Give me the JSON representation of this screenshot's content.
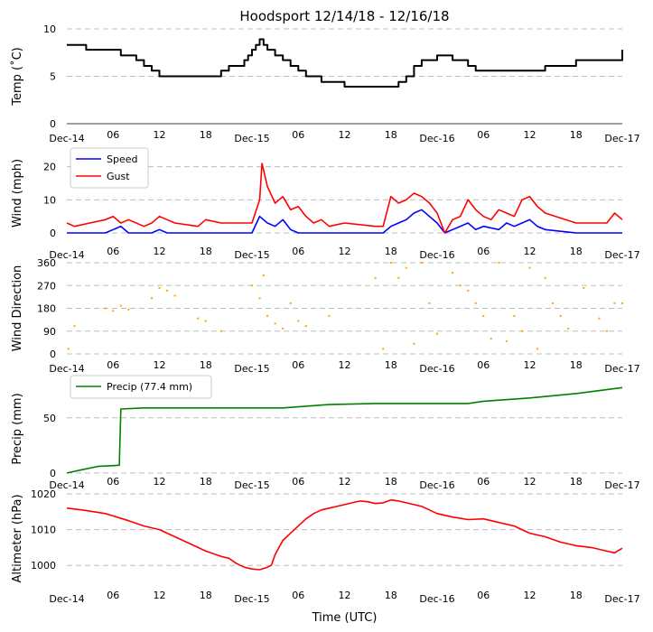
{
  "chart_data": [
    {
      "type": "line",
      "panel": "temperature",
      "title": "Hoodsport 12/14/18 - 12/16/18",
      "ylabel": "Temp ($^\\circ$C)",
      "ylabel_display": "Temp (˚C)",
      "ylim": [
        0,
        10
      ],
      "yticks": [
        0,
        5,
        10
      ],
      "xlim": [
        0,
        72
      ],
      "xticks": [
        "Dec-14",
        "06",
        "12",
        "18",
        "Dec-15",
        "06",
        "12",
        "18",
        "Dec-16",
        "06",
        "12",
        "18",
        "Dec-17"
      ],
      "grid": "dashed-horizontal",
      "series": [
        {
          "name": "Temp",
          "color": "#000000",
          "x": [
            0,
            2,
            2.5,
            6,
            7,
            8,
            9,
            10,
            11,
            12,
            18,
            20,
            21,
            23,
            23.5,
            24,
            24.5,
            25,
            25.5,
            26,
            27,
            28,
            29,
            30,
            31,
            33,
            34,
            36,
            42,
            43,
            44,
            45,
            46,
            48,
            49,
            50,
            52,
            53,
            54,
            60,
            62,
            66,
            72
          ],
          "y": [
            8.3,
            8.3,
            7.8,
            7.8,
            7.2,
            7.2,
            6.7,
            6.1,
            5.6,
            5.0,
            5.0,
            5.6,
            6.1,
            6.7,
            7.2,
            7.8,
            8.3,
            8.9,
            8.3,
            7.8,
            7.2,
            6.7,
            6.1,
            5.6,
            5.0,
            4.4,
            4.4,
            3.9,
            3.9,
            4.4,
            5.0,
            6.1,
            6.7,
            7.2,
            7.2,
            6.7,
            6.1,
            5.6,
            5.6,
            5.6,
            6.1,
            6.7,
            7.8
          ]
        }
      ]
    },
    {
      "type": "line",
      "panel": "wind",
      "ylabel": "Wind (mph)",
      "ylim": [
        0,
        24
      ],
      "yticks": [
        0,
        10,
        20
      ],
      "xticks": [
        "Dec-14",
        "06",
        "12",
        "18",
        "Dec-15",
        "06",
        "12",
        "18",
        "Dec-16",
        "06",
        "12",
        "18",
        "Dec-17"
      ],
      "legend": "upper-left",
      "series": [
        {
          "name": "Speed",
          "color": "#0000ff",
          "x": [
            0,
            5,
            6,
            7,
            8,
            11,
            12,
            13,
            18,
            24,
            25,
            26,
            27,
            28,
            29,
            30,
            34,
            41,
            42,
            43,
            44,
            45,
            46,
            47,
            48,
            49,
            50,
            51,
            52,
            53,
            54,
            56,
            57,
            58,
            59,
            60,
            61,
            62,
            66,
            70,
            72
          ],
          "y": [
            0,
            0,
            1,
            2,
            0,
            0,
            1,
            0,
            0,
            0,
            5,
            3,
            2,
            4,
            1,
            0,
            0,
            0,
            2,
            3,
            4,
            6,
            7,
            5,
            3,
            0,
            1,
            2,
            3,
            1,
            2,
            1,
            3,
            2,
            3,
            4,
            2,
            1,
            0,
            0,
            0
          ]
        },
        {
          "name": "Gust",
          "color": "#ff0000",
          "x": [
            0,
            1,
            3,
            5,
            6,
            7,
            8,
            10,
            11,
            12,
            13,
            14,
            17,
            18,
            20,
            24,
            25,
            25.3,
            26,
            27,
            28,
            29,
            30,
            31,
            32,
            33,
            34,
            36,
            40,
            41,
            42,
            43,
            44,
            45,
            46,
            47,
            48,
            49,
            50,
            51,
            52,
            53,
            54,
            55,
            56,
            57,
            58,
            59,
            60,
            61,
            62,
            66,
            70,
            71,
            72
          ],
          "y": [
            3,
            2,
            3,
            4,
            5,
            3,
            4,
            2,
            3,
            5,
            4,
            3,
            2,
            4,
            3,
            3,
            10,
            21,
            14,
            9,
            11,
            7,
            8,
            5,
            3,
            4,
            2,
            3,
            2,
            2,
            11,
            9,
            10,
            12,
            11,
            9,
            6,
            0,
            4,
            5,
            10,
            7,
            5,
            4,
            7,
            6,
            5,
            10,
            11,
            8,
            6,
            3,
            3,
            6,
            4
          ]
        }
      ]
    },
    {
      "type": "scatter",
      "panel": "wind direction",
      "ylabel": "Wind Direction",
      "ylim": [
        0,
        360
      ],
      "yticks": [
        0,
        90,
        180,
        270,
        360
      ],
      "xticks": [
        "Dec-14",
        "06",
        "12",
        "18",
        "Dec-15",
        "06",
        "12",
        "18",
        "Dec-16",
        "06",
        "12",
        "18",
        "Dec-17"
      ],
      "series": [
        {
          "name": "Direction",
          "color": "#ffa500",
          "x": [
            0.2,
            1,
            5,
            6,
            7,
            8,
            11,
            12,
            13,
            14,
            17,
            18,
            20,
            24,
            25,
            25.5,
            26,
            27,
            28,
            29,
            30,
            31,
            34,
            40,
            41,
            42,
            43,
            44,
            45,
            46,
            47,
            48,
            50,
            51,
            52,
            53,
            54,
            55,
            56,
            57,
            58,
            59,
            60,
            61,
            62,
            63,
            64,
            65,
            67,
            69,
            70,
            71,
            72
          ],
          "y": [
            20,
            110,
            180,
            170,
            190,
            175,
            220,
            260,
            250,
            230,
            140,
            130,
            90,
            270,
            220,
            310,
            150,
            120,
            100,
            200,
            130,
            110,
            150,
            300,
            20,
            360,
            300,
            340,
            40,
            360,
            200,
            80,
            320,
            270,
            250,
            200,
            150,
            60,
            360,
            50,
            150,
            90,
            340,
            20,
            300,
            200,
            150,
            100,
            260,
            140,
            90,
            200,
            200
          ]
        }
      ]
    },
    {
      "type": "line",
      "panel": "precip",
      "ylabel": "Precip (mm)",
      "ylim": [
        -5,
        85
      ],
      "yticks": [
        0,
        50
      ],
      "xticks": [
        "Dec-14",
        "06",
        "12",
        "18",
        "Dec-15",
        "06",
        "12",
        "18",
        "Dec-16",
        "06",
        "12",
        "18",
        "Dec-17"
      ],
      "legend": "upper-left",
      "series": [
        {
          "name": "Precip (77.4 mm)",
          "color": "#008000",
          "x": [
            0,
            2,
            4,
            6.8,
            7,
            10,
            20,
            28,
            30,
            34,
            40,
            48,
            52,
            54,
            60,
            66,
            72
          ],
          "y": [
            0,
            3,
            6,
            7,
            58,
            59,
            59,
            59,
            60,
            62,
            63,
            63,
            63,
            65,
            68,
            72,
            77.4
          ]
        }
      ]
    },
    {
      "type": "line",
      "panel": "altimeter",
      "ylabel": "Altimeter (hPa)",
      "xlabel": "Time (UTC)",
      "ylim": [
        995,
        1020
      ],
      "yticks": [
        1000,
        1010,
        1020
      ],
      "xticks": [
        "Dec-14",
        "06",
        "12",
        "18",
        "Dec-15",
        "06",
        "12",
        "18",
        "Dec-16",
        "06",
        "12",
        "18",
        "Dec-17"
      ],
      "series": [
        {
          "name": "Altimeter",
          "color": "#ff0000",
          "x": [
            0,
            2,
            5,
            8,
            10,
            12,
            14,
            16,
            18,
            20,
            21,
            22,
            23,
            24,
            25,
            26,
            26.5,
            27,
            28,
            29,
            30,
            31,
            32,
            33,
            34,
            35,
            36,
            37,
            38,
            39,
            40,
            41,
            42,
            43,
            44,
            45,
            46,
            47,
            48,
            50,
            52,
            54,
            56,
            58,
            60,
            62,
            64,
            66,
            68,
            70,
            71,
            72
          ],
          "y": [
            1016,
            1015.5,
            1014.5,
            1012.5,
            1011,
            1010,
            1008,
            1006,
            1004,
            1002.5,
            1002,
            1000.5,
            999.5,
            999,
            998.8,
            999.5,
            1000,
            1003,
            1007,
            1009,
            1011,
            1013,
            1014.5,
            1015.5,
            1016,
            1016.5,
            1017,
            1017.5,
            1018,
            1017.8,
            1017.3,
            1017.5,
            1018.3,
            1018,
            1017.5,
            1017,
            1016.5,
            1015.5,
            1014.5,
            1013.5,
            1012.8,
            1013,
            1012,
            1011,
            1009,
            1008,
            1006.5,
            1005.5,
            1005,
            1004,
            1003.5,
            1004.8
          ]
        }
      ]
    }
  ]
}
